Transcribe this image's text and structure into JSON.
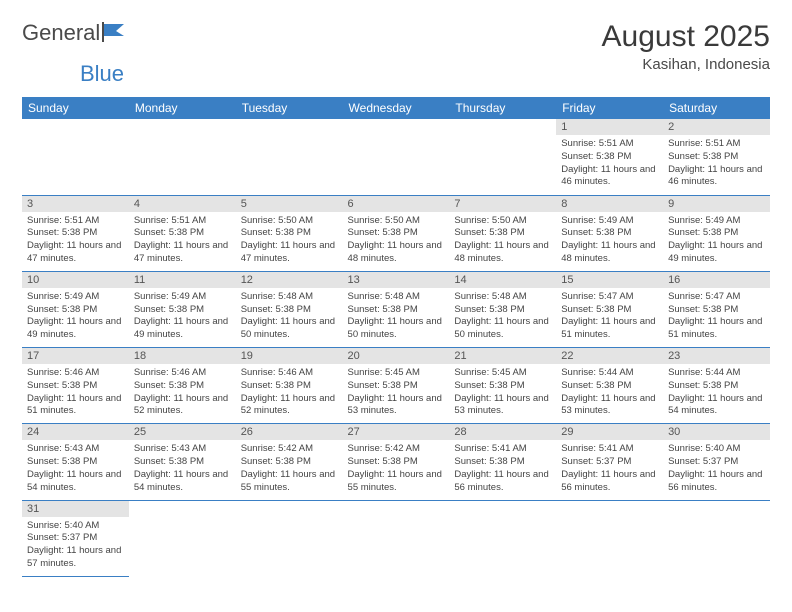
{
  "logo": {
    "part1": "General",
    "part2": "Blue"
  },
  "title": "August 2025",
  "location": "Kasihan, Indonesia",
  "colors": {
    "header_bg": "#3a7fc4",
    "header_text": "#ffffff",
    "daynum_bg": "#e4e4e4",
    "border": "#3a7fc4",
    "logo_gray": "#4a4a4a",
    "logo_blue": "#3a7fc4"
  },
  "weekdays": [
    "Sunday",
    "Monday",
    "Tuesday",
    "Wednesday",
    "Thursday",
    "Friday",
    "Saturday"
  ],
  "weeks": [
    [
      null,
      null,
      null,
      null,
      null,
      {
        "n": "1",
        "sunrise": "5:51 AM",
        "sunset": "5:38 PM",
        "daylight": "11 hours and 46 minutes."
      },
      {
        "n": "2",
        "sunrise": "5:51 AM",
        "sunset": "5:38 PM",
        "daylight": "11 hours and 46 minutes."
      }
    ],
    [
      {
        "n": "3",
        "sunrise": "5:51 AM",
        "sunset": "5:38 PM",
        "daylight": "11 hours and 47 minutes."
      },
      {
        "n": "4",
        "sunrise": "5:51 AM",
        "sunset": "5:38 PM",
        "daylight": "11 hours and 47 minutes."
      },
      {
        "n": "5",
        "sunrise": "5:50 AM",
        "sunset": "5:38 PM",
        "daylight": "11 hours and 47 minutes."
      },
      {
        "n": "6",
        "sunrise": "5:50 AM",
        "sunset": "5:38 PM",
        "daylight": "11 hours and 48 minutes."
      },
      {
        "n": "7",
        "sunrise": "5:50 AM",
        "sunset": "5:38 PM",
        "daylight": "11 hours and 48 minutes."
      },
      {
        "n": "8",
        "sunrise": "5:49 AM",
        "sunset": "5:38 PM",
        "daylight": "11 hours and 48 minutes."
      },
      {
        "n": "9",
        "sunrise": "5:49 AM",
        "sunset": "5:38 PM",
        "daylight": "11 hours and 49 minutes."
      }
    ],
    [
      {
        "n": "10",
        "sunrise": "5:49 AM",
        "sunset": "5:38 PM",
        "daylight": "11 hours and 49 minutes."
      },
      {
        "n": "11",
        "sunrise": "5:49 AM",
        "sunset": "5:38 PM",
        "daylight": "11 hours and 49 minutes."
      },
      {
        "n": "12",
        "sunrise": "5:48 AM",
        "sunset": "5:38 PM",
        "daylight": "11 hours and 50 minutes."
      },
      {
        "n": "13",
        "sunrise": "5:48 AM",
        "sunset": "5:38 PM",
        "daylight": "11 hours and 50 minutes."
      },
      {
        "n": "14",
        "sunrise": "5:48 AM",
        "sunset": "5:38 PM",
        "daylight": "11 hours and 50 minutes."
      },
      {
        "n": "15",
        "sunrise": "5:47 AM",
        "sunset": "5:38 PM",
        "daylight": "11 hours and 51 minutes."
      },
      {
        "n": "16",
        "sunrise": "5:47 AM",
        "sunset": "5:38 PM",
        "daylight": "11 hours and 51 minutes."
      }
    ],
    [
      {
        "n": "17",
        "sunrise": "5:46 AM",
        "sunset": "5:38 PM",
        "daylight": "11 hours and 51 minutes."
      },
      {
        "n": "18",
        "sunrise": "5:46 AM",
        "sunset": "5:38 PM",
        "daylight": "11 hours and 52 minutes."
      },
      {
        "n": "19",
        "sunrise": "5:46 AM",
        "sunset": "5:38 PM",
        "daylight": "11 hours and 52 minutes."
      },
      {
        "n": "20",
        "sunrise": "5:45 AM",
        "sunset": "5:38 PM",
        "daylight": "11 hours and 53 minutes."
      },
      {
        "n": "21",
        "sunrise": "5:45 AM",
        "sunset": "5:38 PM",
        "daylight": "11 hours and 53 minutes."
      },
      {
        "n": "22",
        "sunrise": "5:44 AM",
        "sunset": "5:38 PM",
        "daylight": "11 hours and 53 minutes."
      },
      {
        "n": "23",
        "sunrise": "5:44 AM",
        "sunset": "5:38 PM",
        "daylight": "11 hours and 54 minutes."
      }
    ],
    [
      {
        "n": "24",
        "sunrise": "5:43 AM",
        "sunset": "5:38 PM",
        "daylight": "11 hours and 54 minutes."
      },
      {
        "n": "25",
        "sunrise": "5:43 AM",
        "sunset": "5:38 PM",
        "daylight": "11 hours and 54 minutes."
      },
      {
        "n": "26",
        "sunrise": "5:42 AM",
        "sunset": "5:38 PM",
        "daylight": "11 hours and 55 minutes."
      },
      {
        "n": "27",
        "sunrise": "5:42 AM",
        "sunset": "5:38 PM",
        "daylight": "11 hours and 55 minutes."
      },
      {
        "n": "28",
        "sunrise": "5:41 AM",
        "sunset": "5:38 PM",
        "daylight": "11 hours and 56 minutes."
      },
      {
        "n": "29",
        "sunrise": "5:41 AM",
        "sunset": "5:37 PM",
        "daylight": "11 hours and 56 minutes."
      },
      {
        "n": "30",
        "sunrise": "5:40 AM",
        "sunset": "5:37 PM",
        "daylight": "11 hours and 56 minutes."
      }
    ],
    [
      {
        "n": "31",
        "sunrise": "5:40 AM",
        "sunset": "5:37 PM",
        "daylight": "11 hours and 57 minutes."
      },
      null,
      null,
      null,
      null,
      null,
      null
    ]
  ],
  "labels": {
    "sunrise": "Sunrise: ",
    "sunset": "Sunset: ",
    "daylight": "Daylight: "
  }
}
